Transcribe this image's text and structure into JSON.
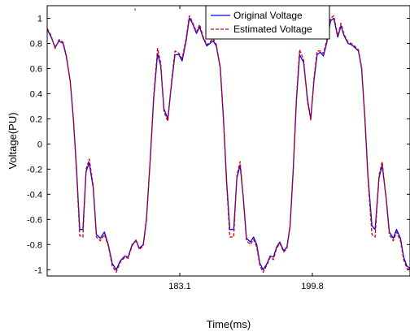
{
  "chart_data": {
    "type": "line",
    "title": "",
    "xlabel": "Time(ms)",
    "ylabel": "Voltage(PU)",
    "xlim": [
      166.4,
      212.1
    ],
    "ylim": [
      -1.05,
      1.1
    ],
    "grid": false,
    "legend_position": "top-right",
    "x_tick_labels": [
      {
        "value": 183.1,
        "label": "183.1"
      },
      {
        "value": 199.8,
        "label": "199.8"
      }
    ],
    "y_tick_labels": [
      {
        "value": 1,
        "label": "1"
      },
      {
        "value": 0.8,
        "label": "0.8"
      },
      {
        "value": 0.6,
        "label": "0.6"
      },
      {
        "value": 0.4,
        "label": "0.4"
      },
      {
        "value": 0.2,
        "label": "0.2"
      },
      {
        "value": 0,
        "label": "0"
      },
      {
        "value": -0.2,
        "label": "-0.2"
      },
      {
        "value": -0.4,
        "label": "-0.4"
      },
      {
        "value": -0.6,
        "label": "-0.6"
      },
      {
        "value": -0.8,
        "label": "-0.8"
      },
      {
        "value": -1,
        "label": "-1"
      }
    ],
    "x": [
      166.4,
      166.9,
      167.4,
      167.9,
      168.4,
      168.8,
      169.3,
      169.7,
      170.1,
      170.5,
      170.9,
      171.3,
      171.7,
      172.2,
      172.6,
      173.1,
      173.6,
      174.1,
      174.6,
      175.1,
      175.6,
      176.2,
      176.6,
      177.1,
      177.6,
      178.0,
      178.5,
      178.9,
      179.4,
      179.8,
      180.3,
      180.7,
      181.1,
      181.6,
      182.1,
      182.5,
      183.0,
      183.4,
      183.9,
      184.3,
      184.7,
      185.2,
      185.6,
      186.0,
      186.5,
      186.9,
      187.3,
      187.7,
      188.2,
      188.6,
      189.0,
      189.4,
      189.9,
      190.3,
      190.7,
      191.1,
      191.5,
      192.0,
      192.4,
      192.8,
      193.2,
      193.6,
      194.1,
      194.5,
      194.9,
      195.3,
      195.7,
      196.2,
      196.6,
      197.0,
      197.4,
      197.8,
      198.2,
      198.7,
      199.2,
      199.6,
      200.0,
      200.4,
      200.8,
      201.2,
      201.6,
      202.1,
      202.5,
      203.0,
      203.4,
      203.8,
      204.3,
      204.7,
      205.1,
      205.6,
      206.0,
      206.4,
      206.8,
      207.3,
      207.7,
      208.2,
      208.6,
      209.1,
      209.5,
      210.0,
      210.4,
      210.9,
      211.3,
      211.7,
      212.1
    ],
    "series": [
      {
        "name": "Original Voltage",
        "color": "#0000ff",
        "line_style": "solid",
        "values": [
          0.91,
          0.85,
          0.77,
          0.82,
          0.8,
          0.7,
          0.5,
          0.2,
          -0.2,
          -0.68,
          -0.68,
          -0.22,
          -0.15,
          -0.35,
          -0.72,
          -0.75,
          -0.7,
          -0.8,
          -0.95,
          -1.0,
          -0.93,
          -0.89,
          -0.9,
          -0.8,
          -0.77,
          -0.83,
          -0.8,
          -0.6,
          -0.1,
          0.35,
          0.72,
          0.62,
          0.28,
          0.2,
          0.5,
          0.71,
          0.71,
          0.66,
          0.82,
          1.0,
          0.96,
          0.88,
          0.93,
          0.85,
          0.78,
          0.8,
          0.82,
          0.78,
          0.6,
          0.2,
          -0.3,
          -0.68,
          -0.68,
          -0.27,
          -0.17,
          -0.43,
          -0.75,
          -0.78,
          -0.74,
          -0.8,
          -0.95,
          -1.0,
          -0.95,
          -0.89,
          -0.9,
          -0.82,
          -0.78,
          -0.85,
          -0.82,
          -0.65,
          -0.2,
          0.35,
          0.71,
          0.65,
          0.35,
          0.2,
          0.5,
          0.71,
          0.73,
          0.7,
          0.8,
          0.98,
          1.0,
          0.85,
          0.94,
          0.86,
          0.8,
          0.79,
          0.77,
          0.74,
          0.6,
          0.22,
          -0.25,
          -0.65,
          -0.68,
          -0.27,
          -0.17,
          -0.43,
          -0.7,
          -0.75,
          -0.68,
          -0.75,
          -0.9,
          -0.97,
          -0.99
        ]
      },
      {
        "name": "Estimated Voltage",
        "color": "#d00000",
        "line_style": "dashed",
        "values": [
          0.92,
          0.86,
          0.76,
          0.83,
          0.81,
          0.71,
          0.5,
          0.2,
          -0.22,
          -0.73,
          -0.74,
          -0.2,
          -0.12,
          -0.33,
          -0.74,
          -0.77,
          -0.72,
          -0.81,
          -0.97,
          -1.02,
          -0.94,
          -0.9,
          -0.91,
          -0.81,
          -0.76,
          -0.84,
          -0.81,
          -0.61,
          -0.1,
          0.37,
          0.76,
          0.64,
          0.26,
          0.18,
          0.52,
          0.74,
          0.72,
          0.68,
          0.84,
          1.02,
          0.97,
          0.89,
          0.95,
          0.86,
          0.79,
          0.81,
          0.84,
          0.79,
          0.61,
          0.2,
          -0.32,
          -0.74,
          -0.74,
          -0.25,
          -0.14,
          -0.44,
          -0.77,
          -0.8,
          -0.76,
          -0.82,
          -0.97,
          -1.02,
          -0.96,
          -0.9,
          -0.92,
          -0.83,
          -0.79,
          -0.86,
          -0.83,
          -0.66,
          -0.2,
          0.37,
          0.75,
          0.67,
          0.33,
          0.19,
          0.52,
          0.74,
          0.74,
          0.72,
          0.82,
          1.0,
          1.02,
          0.86,
          0.96,
          0.87,
          0.81,
          0.8,
          0.78,
          0.75,
          0.61,
          0.22,
          -0.27,
          -0.72,
          -0.74,
          -0.25,
          -0.14,
          -0.44,
          -0.72,
          -0.77,
          -0.7,
          -0.77,
          -0.92,
          -0.99,
          -1.0
        ]
      }
    ],
    "corner_mark": "'"
  }
}
